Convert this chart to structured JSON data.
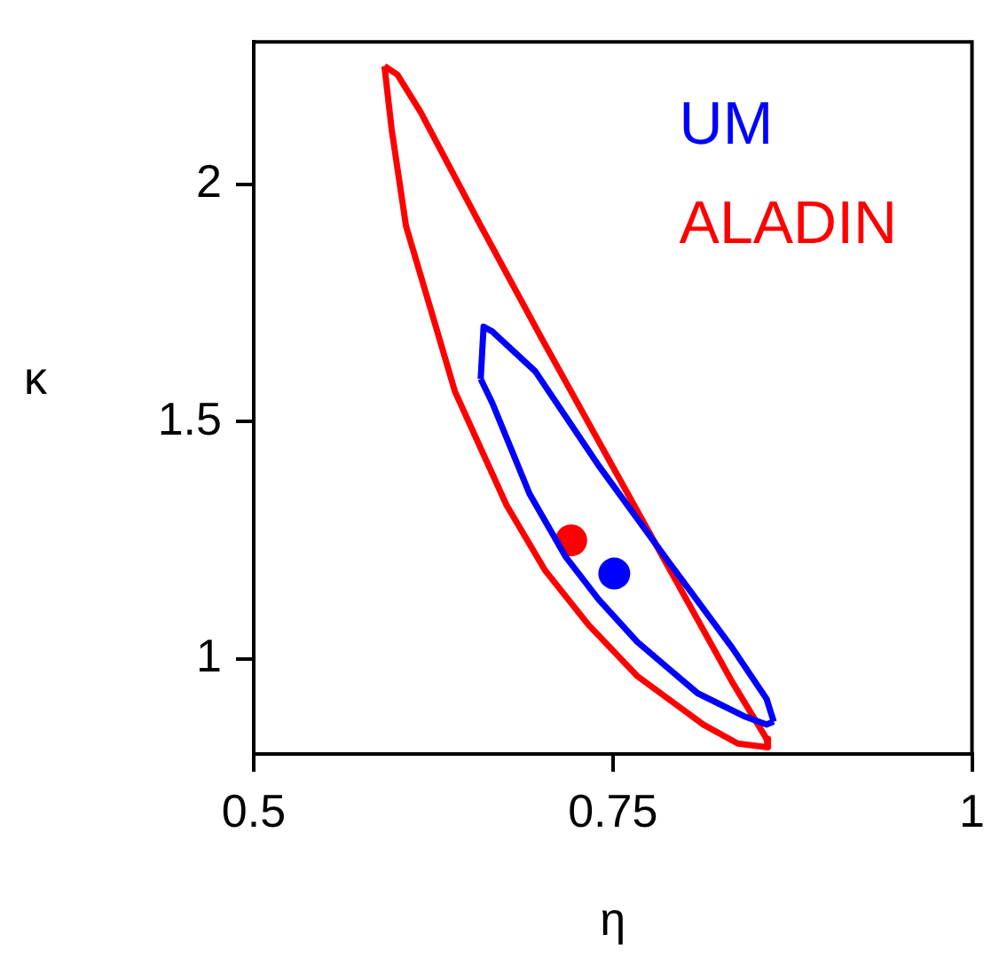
{
  "chart_data": {
    "type": "line",
    "xlabel": "η",
    "ylabel": "κ",
    "xlim": [
      0.5,
      1
    ],
    "ylim": [
      0.8,
      2.3
    ],
    "xticks": [
      0.5,
      0.75,
      1
    ],
    "yticks": [
      1,
      1.5,
      2
    ],
    "grid": false,
    "series": [
      {
        "name": "UM",
        "color": "#0000ff",
        "x": [
          0.658,
          0.66,
          0.666,
          0.696,
          0.74,
          0.789,
          0.833,
          0.857,
          0.862
        ],
        "values": [
          1.59,
          1.7,
          1.69,
          1.606,
          1.408,
          1.204,
          1.024,
          0.916,
          0.868
        ]
      },
      {
        "color": "#0000ff",
        "x": [
          0.658,
          0.666,
          0.692,
          0.717,
          0.74,
          0.767,
          0.809,
          0.841,
          0.857,
          0.862
        ],
        "values": [
          1.59,
          1.54,
          1.348,
          1.216,
          1.126,
          1.036,
          0.928,
          0.88,
          0.862,
          0.868
        ]
      },
      {
        "name": "ALADIN",
        "color": "#ff0000",
        "x": [
          0.591,
          0.6,
          0.616,
          0.656,
          0.7,
          0.745,
          0.789,
          0.833,
          0.857,
          0.858
        ],
        "values": [
          2.249,
          2.231,
          2.153,
          1.924,
          1.678,
          1.432,
          1.192,
          0.952,
          0.832,
          0.814
        ]
      },
      {
        "color": "#ff0000",
        "x": [
          0.591,
          0.596,
          0.606,
          0.626,
          0.64,
          0.676,
          0.703,
          0.733,
          0.767,
          0.813,
          0.837,
          0.858
        ],
        "values": [
          2.249,
          2.116,
          1.912,
          1.708,
          1.564,
          1.324,
          1.186,
          1.072,
          0.964,
          0.862,
          0.822,
          0.814
        ]
      },
      {
        "type": "scatter",
        "marker": "circle",
        "color": "#0000ff",
        "x": [
          0.751
        ],
        "values": [
          1.18
        ]
      },
      {
        "type": "scatter",
        "marker": "circle",
        "color": "#ff0000",
        "x": [
          0.721
        ],
        "values": [
          1.25
        ]
      }
    ]
  }
}
